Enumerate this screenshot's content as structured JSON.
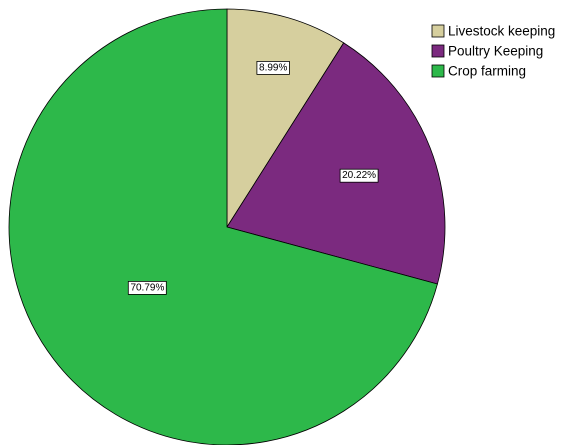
{
  "chart_data": {
    "type": "pie",
    "title": "",
    "labels": [
      "Livestock keeping",
      "Poultry Keeping",
      "Crop farming"
    ],
    "values": [
      8.99,
      20.22,
      70.79
    ],
    "data_labels": [
      "8.99%",
      "20.22%",
      "70.79%"
    ],
    "colors": [
      "#d6cf9e",
      "#7b2a7f",
      "#2db84a"
    ],
    "start_angle": "12 o'clock",
    "direction": "clockwise",
    "legend": {
      "position": "top-right",
      "entries": [
        "Livestock keeping",
        "Poultry Keeping",
        "Crop farming"
      ]
    }
  }
}
